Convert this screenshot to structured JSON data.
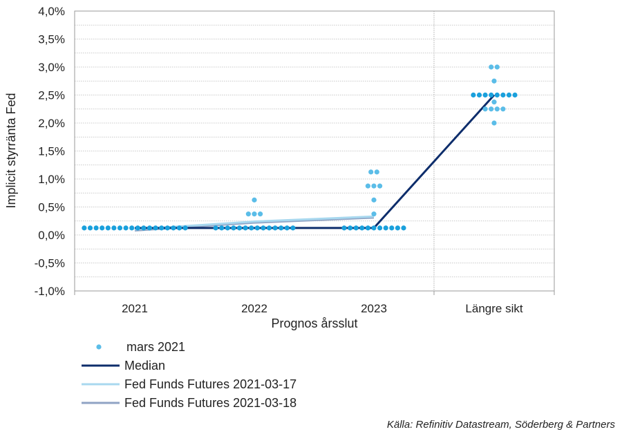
{
  "chart_data": {
    "type": "scatter",
    "title": "",
    "xlabel": "Prognos årsslut",
    "ylabel": "Implicit styrränta Fed",
    "categories": [
      "2021",
      "2022",
      "2023",
      "Längre sikt"
    ],
    "ylim": [
      -1.0,
      4.0
    ],
    "yticks": [
      -1.0,
      -0.5,
      0.0,
      0.5,
      1.0,
      1.5,
      2.0,
      2.5,
      3.0,
      3.5,
      4.0
    ],
    "ytick_labels": [
      "-1,0%",
      "-0,5%",
      "0,0%",
      "0,5%",
      "1,0%",
      "1,5%",
      "2,0%",
      "2,5%",
      "3,0%",
      "3,5%",
      "4,0%"
    ],
    "grid": "horizontal dotted",
    "dots_series": {
      "name": "mars 2021",
      "color": "#1aa0dc",
      "light_color": "#5bbde8",
      "groups": [
        {
          "category": "2021",
          "points": [
            {
              "y": 0.125,
              "count": 18
            }
          ]
        },
        {
          "category": "2022",
          "points": [
            {
              "y": 0.125,
              "count": 14
            },
            {
              "y": 0.375,
              "count": 3
            },
            {
              "y": 0.625,
              "count": 1
            }
          ]
        },
        {
          "category": "2023",
          "points": [
            {
              "y": 0.125,
              "count": 11
            },
            {
              "y": 0.375,
              "count": 1
            },
            {
              "y": 0.625,
              "count": 1
            },
            {
              "y": 0.875,
              "count": 3
            },
            {
              "y": 1.125,
              "count": 2
            }
          ]
        },
        {
          "category": "Längre sikt",
          "points": [
            {
              "y": 2.0,
              "count": 1
            },
            {
              "y": 2.25,
              "count": 4
            },
            {
              "y": 2.375,
              "count": 1
            },
            {
              "y": 2.5,
              "count": 8
            },
            {
              "y": 2.75,
              "count": 1
            },
            {
              "y": 3.0,
              "count": 2
            }
          ]
        }
      ]
    },
    "series": [
      {
        "name": "Median",
        "color": "#0d2d6b",
        "values": [
          0.125,
          0.125,
          0.125,
          2.5
        ]
      },
      {
        "name": "Fed Funds Futures 2021-03-17",
        "color": "#a8d8ef",
        "values": [
          0.1,
          0.24,
          0.33,
          null
        ]
      },
      {
        "name": "Fed Funds Futures 2021-03-18",
        "color": "#8fa3c4",
        "values": [
          0.08,
          0.22,
          0.31,
          null
        ]
      }
    ],
    "legend_position": "bottom-left"
  },
  "source": "Källa: Refinitiv Datastream, Söderberg & Partners"
}
